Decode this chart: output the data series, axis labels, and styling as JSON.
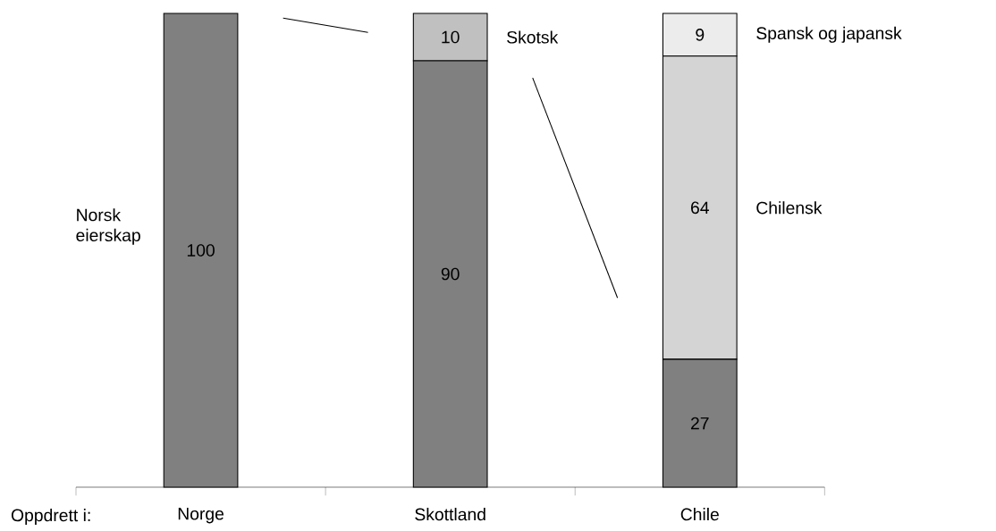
{
  "chart_data": {
    "type": "bar",
    "stacked": true,
    "data_labels": true,
    "xlabel": "Oppdrett i:",
    "categories": [
      "Norge",
      "Skottland",
      "Chile"
    ],
    "series": [
      {
        "name": "Norsk eierskap",
        "color": "#808080",
        "values": [
          100,
          90,
          27
        ]
      },
      {
        "name": "Skotsk",
        "color": "#c0c0c0",
        "values": [
          null,
          10,
          null
        ]
      },
      {
        "name": "Chilensk",
        "color": "#d4d4d4",
        "values": [
          null,
          null,
          64
        ]
      },
      {
        "name": "Spansk og japansk",
        "color": "#ececec",
        "values": [
          null,
          null,
          9
        ]
      }
    ]
  }
}
